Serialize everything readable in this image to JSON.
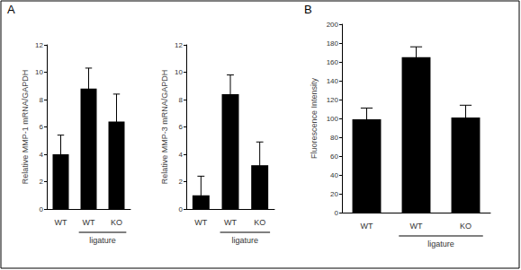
{
  "chart_data": [
    {
      "type": "bar",
      "panel": "A",
      "categories": [
        "WT",
        "WT",
        "KO"
      ],
      "values": [
        4.0,
        8.8,
        6.4
      ],
      "errors": [
        1.4,
        1.5,
        2.0
      ],
      "y_label": "Relative MMP-1 mRNA/GAPDH",
      "ylim": [
        0,
        12
      ],
      "yticks": [
        0,
        2,
        4,
        6,
        8,
        10,
        12
      ],
      "color": "#000000",
      "grid": false,
      "group_label": "ligature"
    },
    {
      "type": "bar",
      "categories": [
        "WT",
        "WT",
        "KO"
      ],
      "values": [
        1.0,
        8.4,
        3.2
      ],
      "errors": [
        1.4,
        1.4,
        1.7
      ],
      "y_label": "Relative MMP-3 mRNA/GAPDH",
      "ylim": [
        0,
        12
      ],
      "yticks": [
        0,
        2,
        4,
        6,
        8,
        10,
        12
      ],
      "color": "#000000",
      "grid": false,
      "group_label": "ligature"
    },
    {
      "type": "bar",
      "panel": "B",
      "categories": [
        "WT",
        "WT",
        "KO"
      ],
      "values": [
        99,
        165,
        101
      ],
      "errors": [
        12,
        11,
        13
      ],
      "y_label": "Fluorescence Intensity",
      "ylim": [
        0,
        200
      ],
      "yticks": [
        0,
        20,
        40,
        60,
        80,
        100,
        120,
        140,
        160,
        180,
        200
      ],
      "color": "#000000",
      "grid": false,
      "group_label": "ligature"
    }
  ]
}
